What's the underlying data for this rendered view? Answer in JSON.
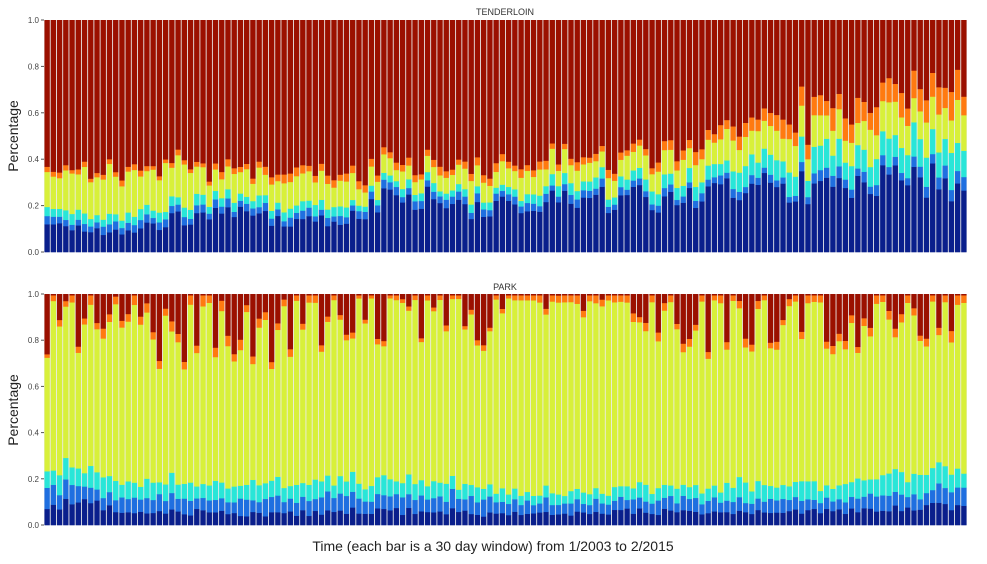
{
  "xlabel_main": "Time (each bar is a 30 day window) from 1/2003 to 2/2015",
  "colors": {
    "bg": "#ebebeb",
    "dark_blue": "#0a1f8c",
    "blue": "#1f6fe0",
    "cyan": "#29e6d8",
    "yellow": "#d8f03a",
    "orange": "#ff7a10",
    "dark_red": "#9b1000"
  },
  "chart_data": [
    {
      "type": "bar",
      "stacked": true,
      "title": "TENDERLOIN",
      "ylabel": "Percentage",
      "xlabel": "",
      "ylim": [
        0,
        1.0
      ],
      "yticks": [
        "0.0",
        "0.2",
        "0.4",
        "0.6",
        "0.8",
        "1.0"
      ],
      "legend": "none",
      "bar_count": 148,
      "anchors": {
        "x": [
          0,
          5,
          10,
          15,
          20,
          25,
          30,
          35,
          40,
          45,
          50,
          55,
          60,
          65,
          70,
          75,
          80,
          85,
          90,
          95,
          100,
          105,
          110,
          115,
          120,
          125,
          130,
          135,
          140,
          145,
          147
        ],
        "series": [
          {
            "name": "",
            "color_key": "dark_blue",
            "values": [
              0.14,
              0.1,
              0.09,
              0.1,
              0.14,
              0.15,
              0.16,
              0.15,
              0.13,
              0.13,
              0.16,
              0.24,
              0.24,
              0.18,
              0.19,
              0.2,
              0.21,
              0.22,
              0.23,
              0.23,
              0.23,
              0.24,
              0.26,
              0.27,
              0.29,
              0.27,
              0.3,
              0.3,
              0.32,
              0.28,
              0.26
            ]
          },
          {
            "name": "",
            "color_key": "blue",
            "values": [
              0.03,
              0.03,
              0.03,
              0.03,
              0.03,
              0.03,
              0.03,
              0.03,
              0.03,
              0.03,
              0.03,
              0.03,
              0.03,
              0.03,
              0.03,
              0.03,
              0.03,
              0.03,
              0.03,
              0.03,
              0.03,
              0.03,
              0.03,
              0.03,
              0.03,
              0.04,
              0.04,
              0.04,
              0.04,
              0.05,
              0.05
            ]
          },
          {
            "name": "",
            "color_key": "cyan",
            "values": [
              0.04,
              0.04,
              0.04,
              0.04,
              0.04,
              0.04,
              0.04,
              0.04,
              0.04,
              0.04,
              0.03,
              0.03,
              0.03,
              0.03,
              0.03,
              0.03,
              0.04,
              0.04,
              0.04,
              0.04,
              0.05,
              0.06,
              0.07,
              0.08,
              0.09,
              0.1,
              0.1,
              0.11,
              0.12,
              0.13,
              0.13
            ]
          },
          {
            "name": "",
            "color_key": "yellow",
            "values": [
              0.17,
              0.18,
              0.19,
              0.19,
              0.16,
              0.13,
              0.1,
              0.1,
              0.1,
              0.1,
              0.09,
              0.06,
              0.06,
              0.08,
              0.08,
              0.09,
              0.09,
              0.09,
              0.09,
              0.09,
              0.1,
              0.1,
              0.11,
              0.11,
              0.12,
              0.12,
              0.13,
              0.13,
              0.14,
              0.15,
              0.15
            ]
          },
          {
            "name": "",
            "color_key": "orange",
            "values": [
              0.02,
              0.02,
              0.02,
              0.02,
              0.02,
              0.02,
              0.03,
              0.03,
              0.03,
              0.03,
              0.03,
              0.03,
              0.03,
              0.03,
              0.03,
              0.03,
              0.03,
              0.03,
              0.03,
              0.03,
              0.04,
              0.05,
              0.05,
              0.06,
              0.07,
              0.08,
              0.09,
              0.1,
              0.1,
              0.1,
              0.11
            ]
          }
        ],
        "remainder_color_key": "dark_red"
      }
    },
    {
      "type": "bar",
      "stacked": true,
      "title": "PARK",
      "ylabel": "Percentage",
      "xlabel": "",
      "ylim": [
        0,
        1.0
      ],
      "yticks": [
        "0.0",
        "0.2",
        "0.4",
        "0.6",
        "0.8",
        "1.0"
      ],
      "legend": "none",
      "bar_count": 148,
      "anchors": {
        "x": [
          0,
          5,
          10,
          15,
          20,
          25,
          30,
          35,
          40,
          45,
          50,
          55,
          60,
          65,
          70,
          75,
          80,
          85,
          90,
          95,
          100,
          105,
          110,
          115,
          120,
          125,
          130,
          135,
          140,
          145,
          147
        ],
        "series": [
          {
            "name": "",
            "color_key": "dark_blue",
            "values": [
              0.08,
              0.1,
              0.08,
              0.06,
              0.06,
              0.06,
              0.05,
              0.05,
              0.06,
              0.06,
              0.06,
              0.06,
              0.06,
              0.06,
              0.05,
              0.05,
              0.05,
              0.05,
              0.06,
              0.06,
              0.06,
              0.06,
              0.06,
              0.06,
              0.06,
              0.06,
              0.07,
              0.07,
              0.08,
              0.08,
              0.08
            ]
          },
          {
            "name": "",
            "color_key": "blue",
            "values": [
              0.09,
              0.07,
              0.06,
              0.06,
              0.06,
              0.06,
              0.06,
              0.06,
              0.06,
              0.07,
              0.07,
              0.08,
              0.08,
              0.07,
              0.06,
              0.05,
              0.05,
              0.05,
              0.05,
              0.05,
              0.05,
              0.05,
              0.05,
              0.05,
              0.05,
              0.05,
              0.06,
              0.06,
              0.06,
              0.07,
              0.07
            ]
          },
          {
            "name": "",
            "color_key": "cyan",
            "values": [
              0.09,
              0.08,
              0.07,
              0.07,
              0.07,
              0.07,
              0.07,
              0.07,
              0.07,
              0.07,
              0.07,
              0.07,
              0.07,
              0.06,
              0.05,
              0.05,
              0.05,
              0.05,
              0.05,
              0.06,
              0.06,
              0.06,
              0.07,
              0.07,
              0.07,
              0.07,
              0.08,
              0.08,
              0.09,
              0.09,
              0.09
            ]
          },
          {
            "name": "",
            "color_key": "yellow",
            "values": [
              0.66,
              0.62,
              0.64,
              0.66,
              0.67,
              0.68,
              0.66,
              0.63,
              0.68,
              0.73,
              0.76,
              0.74,
              0.75,
              0.78,
              0.81,
              0.82,
              0.8,
              0.78,
              0.79,
              0.78,
              0.78,
              0.76,
              0.75,
              0.75,
              0.74,
              0.74,
              0.72,
              0.71,
              0.7,
              0.64,
              0.66
            ]
          },
          {
            "name": "",
            "color_key": "orange",
            "values": [
              0.02,
              0.03,
              0.04,
              0.04,
              0.04,
              0.04,
              0.04,
              0.03,
              0.03,
              0.03,
              0.02,
              0.02,
              0.02,
              0.02,
              0.02,
              0.02,
              0.03,
              0.03,
              0.03,
              0.03,
              0.03,
              0.03,
              0.03,
              0.03,
              0.03,
              0.03,
              0.03,
              0.03,
              0.03,
              0.04,
              0.04
            ]
          }
        ],
        "remainder_color_key": "dark_red"
      }
    }
  ]
}
